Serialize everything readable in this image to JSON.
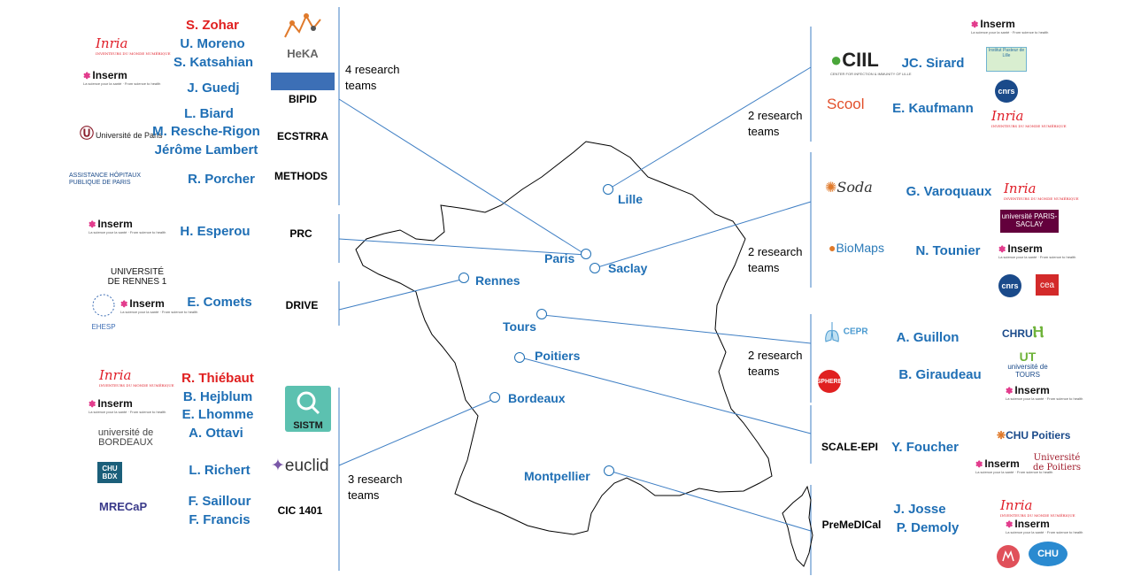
{
  "left": {
    "group1": {
      "names": [
        "S. Zohar",
        "U. Moreno",
        "S. Katsahian",
        "J. Guedj",
        "L. Biard",
        "M. Resche-Rigon",
        "Jérôme Lambert",
        "R. Porcher"
      ],
      "teams": [
        "BIPID",
        "ECSTRRA",
        "METHODS"
      ],
      "count": "4 research teams"
    },
    "group2": {
      "name": "H. Esperou",
      "team": "PRC"
    },
    "group3": {
      "name": "E. Comets",
      "team": "DRIVE"
    },
    "group4": {
      "names": [
        "R. Thiébaut",
        "B. Hejblum",
        "E. Lhomme",
        "A. Ottavi",
        "L. Richert",
        "F. Saillour",
        "F. Francis"
      ],
      "team": "CIC 1401",
      "count": "3 research teams"
    }
  },
  "right": {
    "group1": {
      "names": [
        "JC. Sirard",
        "E. Kaufmann"
      ],
      "count": "2 research teams"
    },
    "group2": {
      "names": [
        "G. Varoquaux",
        "N. Tounier"
      ],
      "count": "2 research teams"
    },
    "group3": {
      "names": [
        "A. Guillon",
        "B. Giraudeau"
      ],
      "count": "2 research teams"
    },
    "group4": {
      "name": "Y. Foucher",
      "team": "SCALE-EPI"
    },
    "group5": {
      "names": [
        "J. Josse",
        "P. Demoly"
      ],
      "team": "PreMeDICal"
    }
  },
  "cities": [
    "Lille",
    "Paris",
    "Saclay",
    "Rennes",
    "Tours",
    "Poitiers",
    "Bordeaux",
    "Montpellier"
  ],
  "logos": {
    "heka": "HeKA",
    "inserm": "Inserm",
    "inserm_tagline": "La science pour la santé · From science to health",
    "inria": "Inria",
    "inria_tagline": "INVENTEURS DU MONDE NUMÉRIQUE",
    "univ_paris": "Université de Paris",
    "aphp": "ASSISTANCE HÔPITAUX PUBLIQUE DE PARIS",
    "univ_rennes": "UNIVERSITÉ DE RENNES 1",
    "ehesp": "EHESP",
    "univ_bordeaux": "université de BORDEAUX",
    "chu_bdx": "CHU BDX",
    "recap": "MRECaP",
    "sistm": "SISTM",
    "euclid": "euclid",
    "ciil": "CIIL",
    "ciil_sub": "CENTER FOR INFECTION & IMMUNITY OF LILLE",
    "scool": "Scool",
    "institut_pasteur": "Institut Pasteur de Lille",
    "cnrs": "cnrs",
    "soda": "Soda",
    "biomaps": "BioMaps",
    "up_saclay": "université PARIS-SACLAY",
    "cea": "cea",
    "cepr": "CEPR",
    "sphere": "SPHERE",
    "chru": "CHRU",
    "univ_tours": "université de TOURS",
    "chu_poitiers": "CHU Poitiers",
    "univ_poitiers": "Université de Poitiers",
    "chu": "CHU"
  },
  "colors": {
    "accent": "#1f6fb5",
    "highlight": "#e02020",
    "line": "#3f7fc4",
    "map": "#000000"
  }
}
